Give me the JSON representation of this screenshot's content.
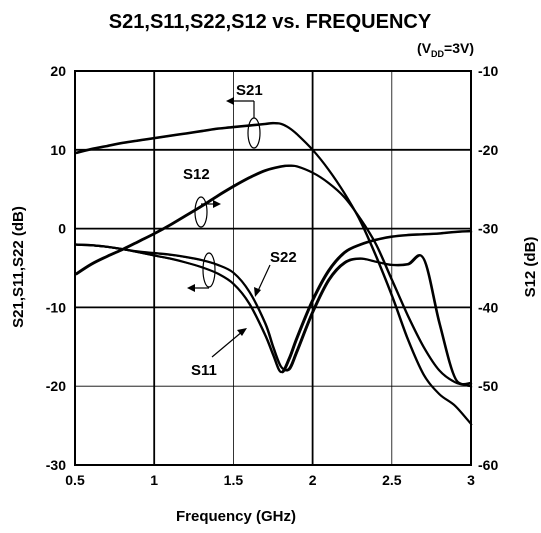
{
  "chart_data": {
    "type": "line",
    "title": "S21,S11,S22,S12 vs. FREQUENCY",
    "condition": {
      "open": "(V",
      "sub": "DD",
      "close": "=3V)"
    },
    "xlabel": "Frequency (GHz)",
    "ylabel_left": "S21,S11,S22 (dB)",
    "ylabel_right": "S12 (dB)",
    "xlim": [
      0.5,
      3
    ],
    "ylim_left": [
      -30,
      20
    ],
    "ylim_right": [
      -60,
      -10
    ],
    "x_ticks": [
      "0.5",
      "1",
      "1.5",
      "2",
      "2.5",
      "3"
    ],
    "y_left_ticks": [
      "20",
      "10",
      "0",
      "-10",
      "-20",
      "-30"
    ],
    "y_right_ticks": [
      "-10",
      "-20",
      "-30",
      "-40",
      "-50",
      "-60"
    ],
    "grid": true,
    "series": [
      {
        "name": "S21",
        "axis": "left",
        "x": [
          0.5,
          0.6,
          0.7,
          0.8,
          0.9,
          1.0,
          1.1,
          1.2,
          1.3,
          1.4,
          1.5,
          1.6,
          1.7,
          1.75,
          1.8,
          1.85,
          1.9,
          2.0,
          2.1,
          2.2,
          2.3,
          2.4,
          2.5,
          2.6,
          2.7,
          2.8,
          2.9,
          3.0
        ],
        "y": [
          9.6,
          10.1,
          10.5,
          10.9,
          11.2,
          11.5,
          11.8,
          12.1,
          12.4,
          12.7,
          12.9,
          13.1,
          13.3,
          13.4,
          13.3,
          12.8,
          12.0,
          10.0,
          7.5,
          4.5,
          1.0,
          -3.5,
          -8.5,
          -14.0,
          -18.5,
          -21.0,
          -22.5,
          -24.8
        ]
      },
      {
        "name": "S12",
        "axis": "right",
        "x": [
          0.5,
          0.6,
          0.7,
          0.8,
          0.9,
          1.0,
          1.1,
          1.2,
          1.3,
          1.4,
          1.5,
          1.6,
          1.7,
          1.8,
          1.85,
          1.9,
          2.0,
          2.1,
          2.2,
          2.3,
          2.4,
          2.5,
          2.6,
          2.7,
          2.8,
          2.9,
          3.0
        ],
        "y": [
          -35.8,
          -34.5,
          -33.5,
          -32.6,
          -31.6,
          -30.6,
          -29.5,
          -28.3,
          -27.1,
          -25.8,
          -24.6,
          -23.5,
          -22.6,
          -22.1,
          -22.0,
          -22.1,
          -22.9,
          -24.2,
          -26.0,
          -28.7,
          -32.0,
          -36.5,
          -41.0,
          -45.0,
          -48.0,
          -49.5,
          -50.0
        ]
      },
      {
        "name": "S11",
        "axis": "left",
        "x": [
          0.5,
          0.6,
          0.7,
          0.8,
          0.9,
          1.0,
          1.1,
          1.2,
          1.3,
          1.4,
          1.5,
          1.6,
          1.7,
          1.75,
          1.8,
          1.85,
          1.9,
          2.0,
          2.1,
          2.2,
          2.3,
          2.4,
          2.5,
          2.6,
          2.7,
          2.8,
          2.9,
          3.0
        ],
        "y": [
          -2.0,
          -2.1,
          -2.3,
          -2.6,
          -3.0,
          -3.4,
          -3.8,
          -4.3,
          -4.9,
          -5.7,
          -7.0,
          -9.5,
          -13.5,
          -16.0,
          -18.2,
          -16.5,
          -13.8,
          -9.0,
          -5.3,
          -3.0,
          -2.0,
          -1.4,
          -1.0,
          -0.8,
          -0.7,
          -0.6,
          -0.4,
          -0.3
        ]
      },
      {
        "name": "S22",
        "axis": "left",
        "x": [
          0.5,
          0.6,
          0.7,
          0.8,
          0.9,
          1.0,
          1.1,
          1.2,
          1.3,
          1.4,
          1.5,
          1.6,
          1.7,
          1.75,
          1.8,
          1.85,
          1.9,
          2.0,
          2.1,
          2.2,
          2.3,
          2.4,
          2.5,
          2.6,
          2.7,
          2.8,
          2.9,
          3.0
        ],
        "y": [
          -2.0,
          -2.1,
          -2.3,
          -2.6,
          -2.9,
          -3.1,
          -3.3,
          -3.6,
          -4.0,
          -4.6,
          -5.6,
          -8.0,
          -12.0,
          -15.0,
          -17.5,
          -17.8,
          -15.5,
          -10.5,
          -6.5,
          -4.3,
          -3.8,
          -4.2,
          -4.6,
          -4.5,
          -3.8,
          -12.0,
          -19.0,
          -19.6
        ]
      }
    ]
  }
}
